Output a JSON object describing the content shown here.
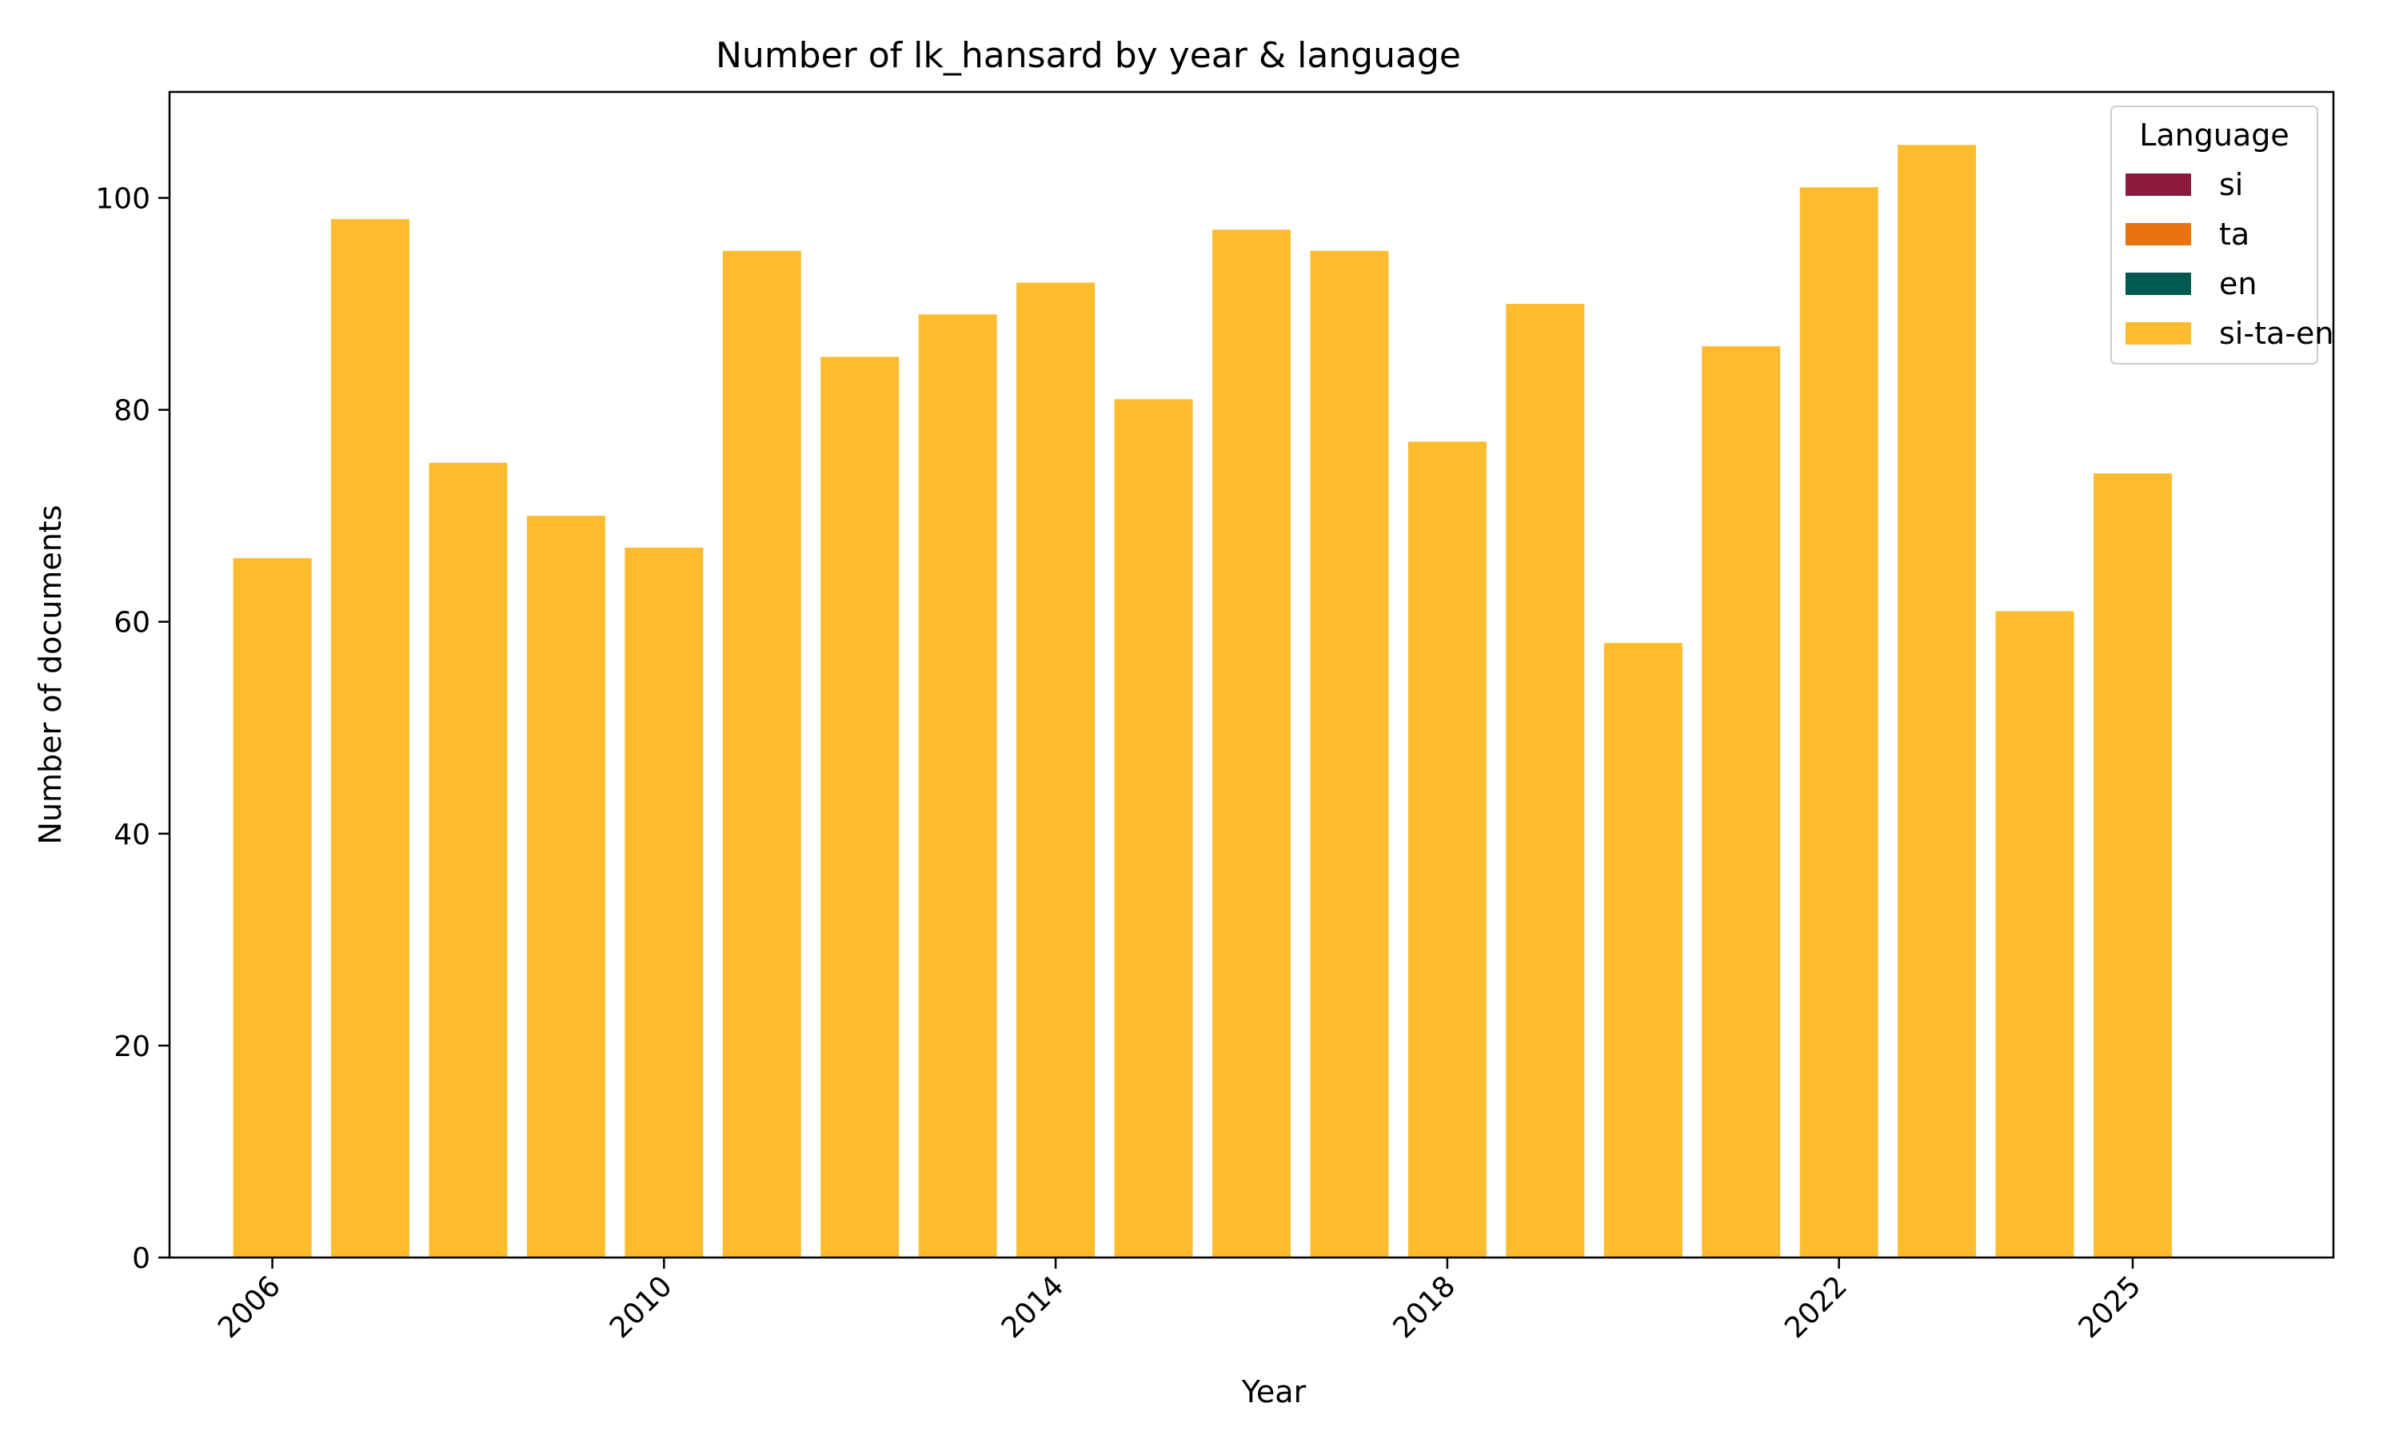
{
  "chart_data": {
    "type": "bar",
    "title": "Number of lk_hansard by year & language",
    "xlabel": "Year",
    "ylabel": "Number of documents",
    "ylim": [
      0,
      110
    ],
    "yticks": [
      0,
      20,
      40,
      60,
      80,
      100
    ],
    "xlim": [
      2004.95,
      2027.05
    ],
    "x": [
      2006,
      2007,
      2008,
      2009,
      2010,
      2011,
      2012,
      2013,
      2014,
      2015,
      2016,
      2017,
      2018,
      2019,
      2020,
      2021,
      2022,
      2023,
      2024,
      2025
    ],
    "xtick_labels": [
      {
        "x": 2006,
        "label": "2006"
      },
      {
        "x": 2010,
        "label": "2010"
      },
      {
        "x": 2014,
        "label": "2014"
      },
      {
        "x": 2018,
        "label": "2018"
      },
      {
        "x": 2022,
        "label": "2022"
      },
      {
        "x": 2025,
        "label": "2025"
      }
    ],
    "stacked": true,
    "series": [
      {
        "name": "si",
        "color": "#8c1a3c",
        "values": [
          0,
          0,
          0,
          0,
          0,
          0,
          0,
          0,
          0,
          0,
          0,
          0,
          0,
          0,
          0,
          0,
          0,
          0,
          0,
          0
        ]
      },
      {
        "name": "ta",
        "color": "#e8730c",
        "values": [
          0,
          0,
          0,
          0,
          0,
          0,
          0,
          0,
          0,
          0,
          0,
          0,
          0,
          0,
          0,
          0,
          0,
          0,
          0,
          0
        ]
      },
      {
        "name": "en",
        "color": "#005a50",
        "values": [
          0,
          0,
          0,
          0,
          0,
          0,
          0,
          0,
          0,
          0,
          0,
          0,
          0,
          0,
          0,
          0,
          0,
          0,
          0,
          0
        ]
      },
      {
        "name": "si-ta-en",
        "color": "#fdbc2e",
        "values": [
          66,
          98,
          75,
          70,
          67,
          95,
          85,
          89,
          92,
          81,
          97,
          95,
          77,
          90,
          58,
          86,
          101,
          105,
          61,
          74
        ]
      }
    ],
    "legend": {
      "title": "Language",
      "placement": "top-right"
    },
    "grid": false
  }
}
